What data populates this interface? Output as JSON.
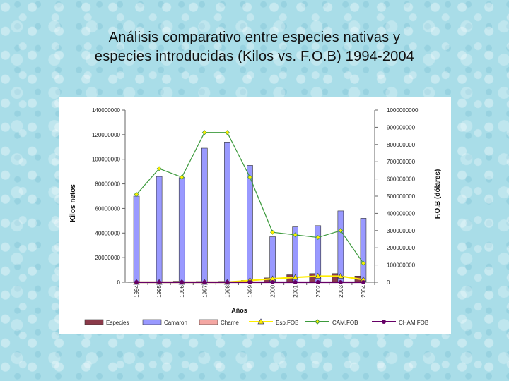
{
  "slide": {
    "title_line1": "Análisis comparativo entre especies nativas y",
    "title_line2": "especies introducidas (Kilos vs. F.O.B) 1994-2004"
  },
  "chart_data": {
    "type": "bar",
    "subtype": "bar-line combo, dual y-axis",
    "categories": [
      "1994",
      "1995",
      "1996",
      "1997",
      "1998",
      "1999",
      "2000",
      "2001",
      "2002",
      "2003",
      "2004"
    ],
    "xlabel": "Años",
    "ylabel_left": "Kilos netos",
    "ylabel_right": "F.O.B (dólares)",
    "ylim_left": [
      0,
      140000000
    ],
    "ylim_right": [
      0,
      1000000000
    ],
    "left_ticks": [
      "0",
      "20000000",
      "40000000",
      "60000000",
      "80000000",
      "100000000",
      "120000000",
      "140000000"
    ],
    "right_ticks": [
      "0",
      "100000000",
      "200000000",
      "300000000",
      "400000000",
      "500000000",
      "600000000",
      "700000000",
      "800000000",
      "900000000",
      "1000000000"
    ],
    "grid": false,
    "legend_position": "bottom",
    "series": [
      {
        "name": "Especies",
        "kind": "bar",
        "axis": "left",
        "color": "#8b3a4a",
        "values": [
          300000,
          400000,
          800000,
          600000,
          700000,
          1500000,
          3500000,
          6000000,
          7000000,
          7000000,
          5000000
        ]
      },
      {
        "name": "Camaron",
        "kind": "bar",
        "axis": "left",
        "color": "#9999ff",
        "values": [
          70000000,
          86000000,
          85000000,
          109000000,
          114000000,
          95000000,
          37000000,
          45000000,
          46000000,
          58000000,
          52000000
        ]
      },
      {
        "name": "Chame",
        "kind": "bar",
        "axis": "left",
        "color": "#f4a7a3",
        "values": [
          0,
          0,
          0,
          0,
          0,
          0,
          0,
          0,
          0,
          0,
          0
        ]
      },
      {
        "name": "Esp.FOB",
        "kind": "line",
        "axis": "right",
        "color": "#ffee00",
        "marker": "triangle",
        "values": [
          0,
          0,
          0,
          0,
          0,
          10000000,
          20000000,
          28000000,
          35000000,
          35000000,
          15000000
        ]
      },
      {
        "name": "CAM.FOB",
        "kind": "line",
        "axis": "right",
        "color": "#3c9a3c",
        "marker": "diamond",
        "values": [
          510000000,
          660000000,
          610000000,
          870000000,
          870000000,
          610000000,
          290000000,
          275000000,
          260000000,
          300000000,
          110000000
        ]
      },
      {
        "name": "CHAM.FOB",
        "kind": "line",
        "axis": "right",
        "color": "#660066",
        "marker": "circle",
        "values": [
          0,
          0,
          0,
          0,
          0,
          0,
          0,
          0,
          0,
          0,
          0
        ]
      }
    ]
  }
}
